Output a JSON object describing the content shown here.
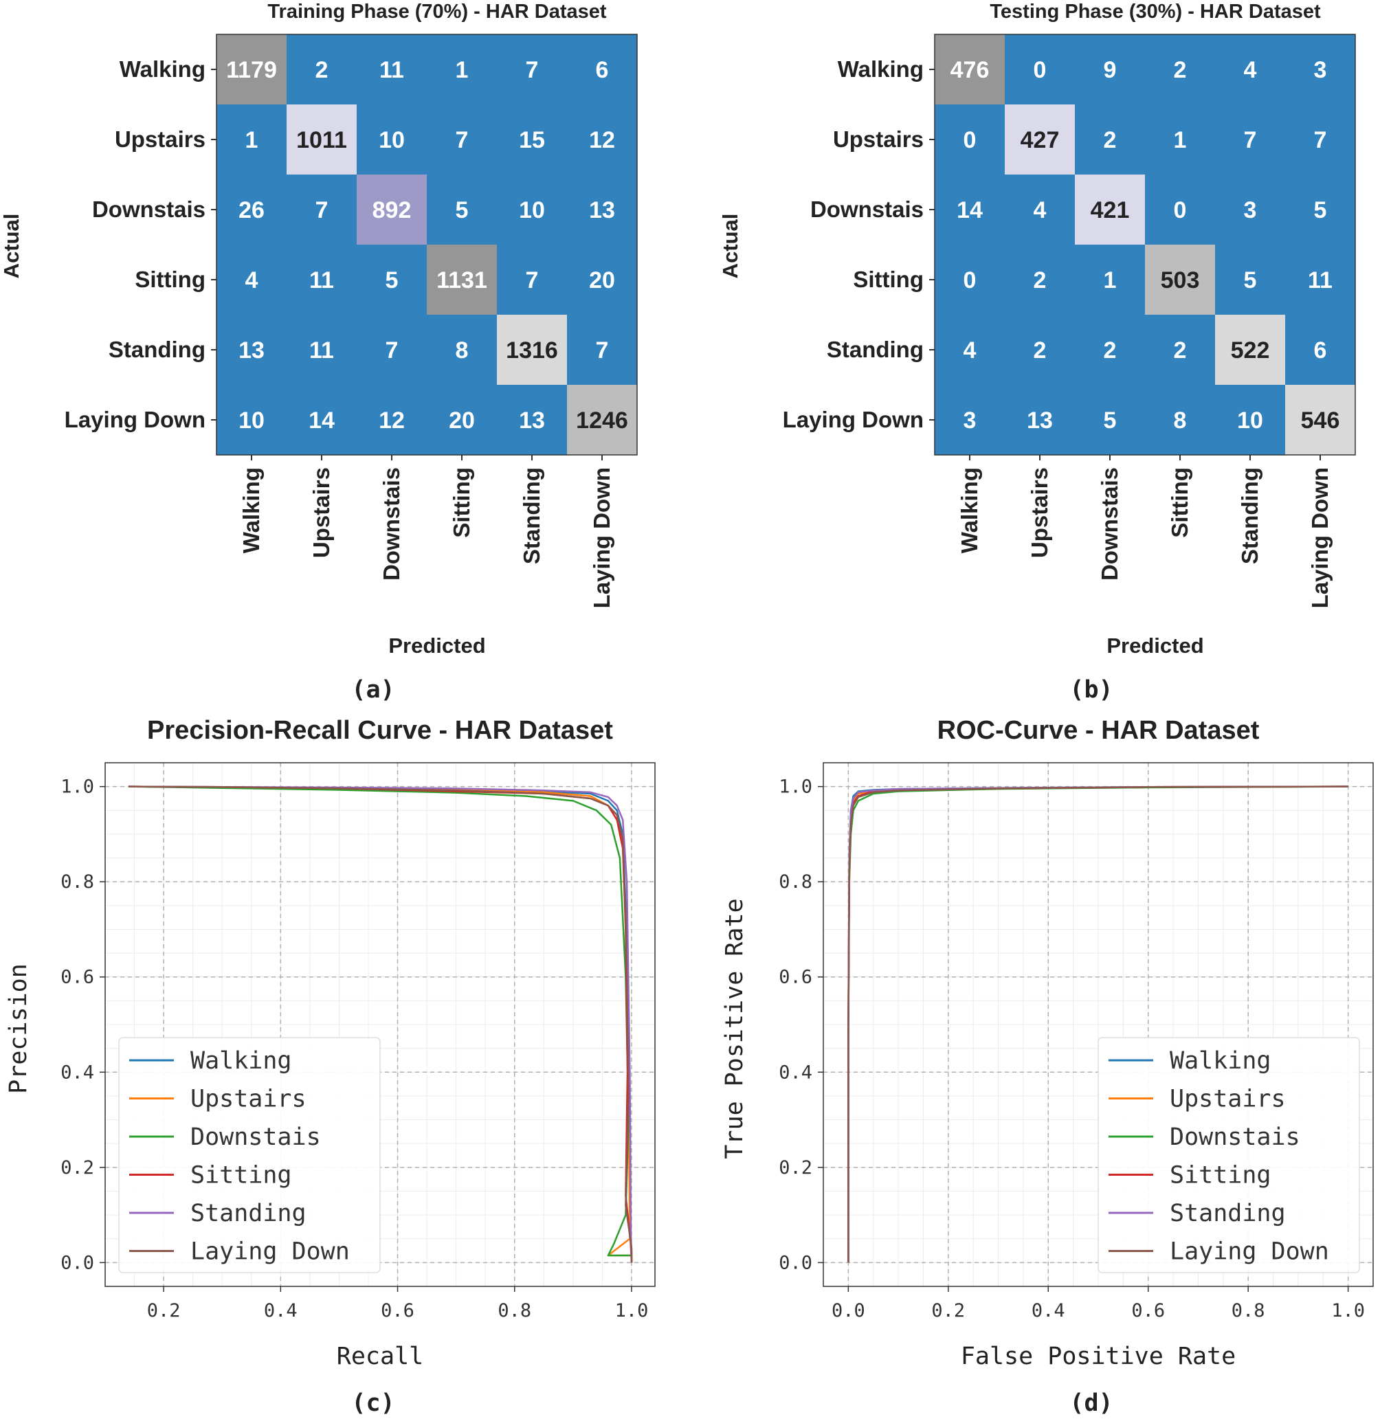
{
  "figure": {
    "panel_labels": [
      "(a)",
      "(b)",
      "(c)",
      "(d)"
    ]
  },
  "colors": {
    "cm_base": "#3182bd",
    "cm_grid_dashed": "#b0b0b0",
    "series": [
      "#1f77b4",
      "#ff7f0e",
      "#2ca02c",
      "#d62728",
      "#9467bd",
      "#8c564b"
    ]
  },
  "chart_data": [
    {
      "type": "heatmap",
      "title": "Training Phase (70%) - HAR Dataset",
      "xlabel": "Predicted",
      "ylabel": "Actual",
      "row_labels": [
        "Walking",
        "Upstairs",
        "Downstais",
        "Sitting",
        "Standing",
        "Laying Down"
      ],
      "col_labels": [
        "Walking",
        "Upstairs",
        "Downstais",
        "Sitting",
        "Standing",
        "Laying Down"
      ],
      "matrix": [
        [
          1179,
          2,
          11,
          1,
          7,
          6
        ],
        [
          1,
          1011,
          10,
          7,
          15,
          12
        ],
        [
          26,
          7,
          892,
          5,
          10,
          13
        ],
        [
          4,
          11,
          5,
          1131,
          7,
          20
        ],
        [
          13,
          11,
          7,
          8,
          1316,
          7
        ],
        [
          10,
          14,
          12,
          20,
          13,
          1246
        ]
      ],
      "diagonal_colors": [
        "#969696",
        "#dadaeb",
        "#9e9ac8",
        "#969696",
        "#d9d9d9",
        "#bdbdbd"
      ],
      "diagonal_text_colors": [
        "#ffffff",
        "#222222",
        "#ffffff",
        "#ffffff",
        "#222222",
        "#222222"
      ]
    },
    {
      "type": "heatmap",
      "title": "Testing Phase (30%) - HAR Dataset",
      "xlabel": "Predicted",
      "ylabel": "Actual",
      "row_labels": [
        "Walking",
        "Upstairs",
        "Downstais",
        "Sitting",
        "Standing",
        "Laying Down"
      ],
      "col_labels": [
        "Walking",
        "Upstairs",
        "Downstais",
        "Sitting",
        "Standing",
        "Laying Down"
      ],
      "matrix": [
        [
          476,
          0,
          9,
          2,
          4,
          3
        ],
        [
          0,
          427,
          2,
          1,
          7,
          7
        ],
        [
          14,
          4,
          421,
          0,
          3,
          5
        ],
        [
          0,
          2,
          1,
          503,
          5,
          11
        ],
        [
          4,
          2,
          2,
          2,
          522,
          6
        ],
        [
          3,
          13,
          5,
          8,
          10,
          546
        ]
      ],
      "diagonal_colors": [
        "#969696",
        "#dadaeb",
        "#dadaeb",
        "#bdbdbd",
        "#d9d9d9",
        "#d9d9d9"
      ],
      "diagonal_text_colors": [
        "#ffffff",
        "#222222",
        "#222222",
        "#222222",
        "#222222",
        "#222222"
      ]
    },
    {
      "type": "line",
      "title": "Precision-Recall Curve - HAR Dataset",
      "xlabel": "Recall",
      "ylabel": "Precision",
      "xlim": [
        0.1,
        1.04
      ],
      "ylim": [
        -0.05,
        1.05
      ],
      "xticks": [
        0.2,
        0.4,
        0.6,
        0.8,
        1.0
      ],
      "xtick_labels": [
        "0.2",
        "0.4",
        "0.6",
        "0.8",
        "1.0"
      ],
      "yticks": [
        0.0,
        0.2,
        0.4,
        0.6,
        0.8,
        1.0
      ],
      "ytick_labels": [
        "0.0",
        "0.2",
        "0.4",
        "0.6",
        "0.8",
        "1.0"
      ],
      "grid": true,
      "legend_position": "lower-left",
      "series": [
        {
          "name": "Walking",
          "x": [
            0.14,
            0.3,
            0.5,
            0.7,
            0.85,
            0.93,
            0.96,
            0.975,
            0.985,
            0.99,
            0.995,
            0.997,
            1.0,
            1.0
          ],
          "y": [
            1.0,
            0.999,
            0.997,
            0.995,
            0.99,
            0.985,
            0.97,
            0.95,
            0.9,
            0.75,
            0.4,
            0.1,
            0.02,
            0.0
          ]
        },
        {
          "name": "Upstairs",
          "x": [
            0.14,
            0.3,
            0.5,
            0.7,
            0.85,
            0.93,
            0.96,
            0.975,
            0.985,
            0.99,
            0.995,
            0.997,
            0.96,
            1.0,
            1.0
          ],
          "y": [
            1.0,
            0.999,
            0.996,
            0.993,
            0.988,
            0.98,
            0.96,
            0.94,
            0.88,
            0.7,
            0.35,
            0.05,
            0.015,
            0.015,
            0.0
          ]
        },
        {
          "name": "Downstais",
          "x": [
            0.14,
            0.3,
            0.5,
            0.7,
            0.82,
            0.9,
            0.94,
            0.965,
            0.98,
            0.99,
            0.995,
            0.99,
            0.97,
            0.96,
            1.0,
            1.0
          ],
          "y": [
            1.0,
            0.997,
            0.993,
            0.987,
            0.98,
            0.97,
            0.95,
            0.92,
            0.85,
            0.6,
            0.3,
            0.1,
            0.04,
            0.015,
            0.015,
            0.0
          ]
        },
        {
          "name": "Sitting",
          "x": [
            0.14,
            0.3,
            0.5,
            0.7,
            0.85,
            0.93,
            0.96,
            0.975,
            0.985,
            0.99,
            0.993,
            0.99,
            0.998,
            1.0
          ],
          "y": [
            1.0,
            0.999,
            0.996,
            0.99,
            0.985,
            0.975,
            0.96,
            0.93,
            0.87,
            0.7,
            0.4,
            0.14,
            0.05,
            0.0
          ]
        },
        {
          "name": "Standing",
          "x": [
            0.14,
            0.3,
            0.5,
            0.7,
            0.85,
            0.93,
            0.96,
            0.975,
            0.985,
            0.992,
            0.997,
            0.999,
            1.0
          ],
          "y": [
            1.0,
            0.999,
            0.998,
            0.996,
            0.992,
            0.988,
            0.978,
            0.96,
            0.93,
            0.8,
            0.4,
            0.05,
            0.0
          ]
        },
        {
          "name": "Laying Down",
          "x": [
            0.14,
            0.3,
            0.5,
            0.7,
            0.85,
            0.93,
            0.96,
            0.975,
            0.985,
            0.99,
            0.995,
            0.99,
            1.0,
            1.0
          ],
          "y": [
            1.0,
            0.999,
            0.996,
            0.992,
            0.985,
            0.975,
            0.96,
            0.94,
            0.89,
            0.72,
            0.35,
            0.12,
            0.03,
            0.0
          ]
        }
      ]
    },
    {
      "type": "line",
      "title": "ROC-Curve - HAR Dataset",
      "xlabel": "False Positive Rate",
      "ylabel": "True Positive Rate",
      "xlim": [
        -0.05,
        1.05
      ],
      "ylim": [
        -0.05,
        1.05
      ],
      "xticks": [
        0.0,
        0.2,
        0.4,
        0.6,
        0.8,
        1.0
      ],
      "xtick_labels": [
        "0.0",
        "0.2",
        "0.4",
        "0.6",
        "0.8",
        "1.0"
      ],
      "yticks": [
        0.0,
        0.2,
        0.4,
        0.6,
        0.8,
        1.0
      ],
      "ytick_labels": [
        "0.0",
        "0.2",
        "0.4",
        "0.6",
        "0.8",
        "1.0"
      ],
      "grid": true,
      "legend_position": "lower-right",
      "series": [
        {
          "name": "Walking",
          "x": [
            0.0,
            0.0,
            0.002,
            0.005,
            0.01,
            0.02,
            0.05,
            0.1,
            0.3,
            0.6,
            1.0
          ],
          "y": [
            0.0,
            0.5,
            0.85,
            0.95,
            0.98,
            0.99,
            0.993,
            0.995,
            0.997,
            0.999,
            1.0
          ]
        },
        {
          "name": "Upstairs",
          "x": [
            0.0,
            0.0,
            0.002,
            0.005,
            0.01,
            0.02,
            0.05,
            0.1,
            0.3,
            0.6,
            1.0
          ],
          "y": [
            0.0,
            0.5,
            0.85,
            0.94,
            0.97,
            0.985,
            0.99,
            0.993,
            0.996,
            0.999,
            1.0
          ]
        },
        {
          "name": "Downstais",
          "x": [
            0.0,
            0.0,
            0.002,
            0.005,
            0.01,
            0.02,
            0.05,
            0.1,
            0.3,
            0.6,
            1.0
          ],
          "y": [
            0.0,
            0.47,
            0.8,
            0.9,
            0.95,
            0.97,
            0.985,
            0.99,
            0.995,
            0.998,
            1.0
          ]
        },
        {
          "name": "Sitting",
          "x": [
            0.0,
            0.0,
            0.002,
            0.005,
            0.01,
            0.02,
            0.05,
            0.1,
            0.3,
            0.6,
            1.0
          ],
          "y": [
            0.0,
            0.48,
            0.84,
            0.93,
            0.965,
            0.98,
            0.99,
            0.993,
            0.996,
            0.999,
            1.0
          ]
        },
        {
          "name": "Standing",
          "x": [
            0.0,
            0.0,
            0.002,
            0.005,
            0.01,
            0.02,
            0.05,
            0.1,
            0.3,
            0.6,
            1.0
          ],
          "y": [
            0.0,
            0.5,
            0.86,
            0.95,
            0.975,
            0.988,
            0.992,
            0.995,
            0.997,
            0.999,
            1.0
          ]
        },
        {
          "name": "Laying Down",
          "x": [
            0.0,
            0.0,
            0.002,
            0.005,
            0.01,
            0.02,
            0.05,
            0.1,
            0.3,
            0.6,
            1.0
          ],
          "y": [
            0.0,
            0.48,
            0.82,
            0.92,
            0.96,
            0.978,
            0.988,
            0.992,
            0.996,
            0.999,
            1.0
          ]
        }
      ]
    }
  ]
}
